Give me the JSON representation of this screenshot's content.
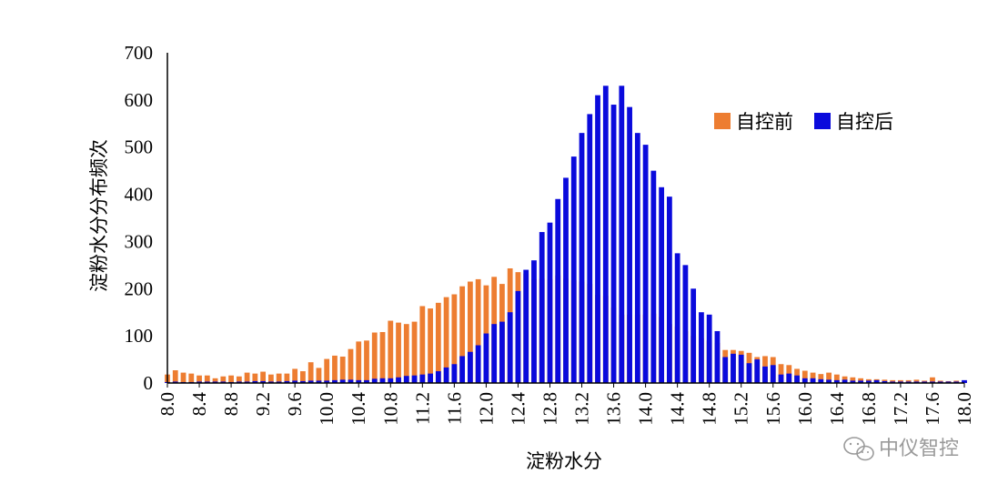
{
  "chart_data": {
    "type": "bar",
    "xlabel": "淀粉水分",
    "ylabel": "淀粉水分分布频次",
    "ylim": [
      0,
      700
    ],
    "yticks": [
      0,
      100,
      200,
      300,
      400,
      500,
      600,
      700
    ],
    "xlim": [
      8.0,
      18.0
    ],
    "bin_width": 0.1,
    "xticks": [
      "8.0",
      "8.4",
      "8.8",
      "9.2",
      "9.6",
      "10.0",
      "10.4",
      "10.8",
      "11.2",
      "11.6",
      "12.0",
      "12.4",
      "12.8",
      "13.2",
      "13.6",
      "14.0",
      "14.4",
      "14.8",
      "15.2",
      "15.6",
      "16.0",
      "16.4",
      "16.8",
      "17.2",
      "17.6",
      "18.0"
    ],
    "legend_position": "top-right",
    "grid": false,
    "series": [
      {
        "name": "自控前",
        "color": "#ED7D31",
        "x": [
          8.0,
          8.1,
          8.2,
          8.3,
          8.4,
          8.5,
          8.6,
          8.7,
          8.8,
          8.9,
          9.0,
          9.1,
          9.2,
          9.3,
          9.4,
          9.5,
          9.6,
          9.7,
          9.8,
          9.9,
          10.0,
          10.1,
          10.2,
          10.3,
          10.4,
          10.5,
          10.6,
          10.7,
          10.8,
          10.9,
          11.0,
          11.1,
          11.2,
          11.3,
          11.4,
          11.5,
          11.6,
          11.7,
          11.8,
          11.9,
          12.0,
          12.1,
          12.2,
          12.3,
          12.4,
          12.5,
          12.6,
          12.7,
          12.8,
          12.9,
          13.0,
          13.1,
          13.2,
          13.3,
          13.4,
          13.5,
          13.6,
          13.7,
          13.8,
          13.9,
          14.0,
          14.1,
          14.2,
          14.3,
          14.4,
          14.5,
          14.6,
          14.7,
          14.8,
          14.9,
          15.0,
          15.1,
          15.2,
          15.3,
          15.4,
          15.5,
          15.6,
          15.7,
          15.8,
          15.9,
          16.0,
          16.1,
          16.2,
          16.3,
          16.4,
          16.5,
          16.6,
          16.7,
          16.8,
          16.9,
          17.0,
          17.1,
          17.2,
          17.3,
          17.4,
          17.5,
          17.6,
          17.7,
          17.8,
          17.9,
          18.0
        ],
        "values": [
          18,
          27,
          22,
          20,
          16,
          16,
          10,
          14,
          16,
          14,
          22,
          20,
          24,
          18,
          20,
          20,
          30,
          25,
          44,
          32,
          51,
          58,
          56,
          72,
          88,
          90,
          107,
          108,
          132,
          128,
          125,
          130,
          163,
          158,
          170,
          182,
          188,
          205,
          215,
          220,
          207,
          225,
          210,
          243,
          235,
          232,
          220,
          221,
          220,
          228,
          221,
          218,
          215,
          210,
          187,
          185,
          160,
          145,
          145,
          145,
          145,
          147,
          140,
          125,
          120,
          110,
          100,
          95,
          90,
          85,
          70,
          70,
          68,
          64,
          55,
          57,
          55,
          40,
          38,
          30,
          26,
          22,
          19,
          22,
          18,
          14,
          12,
          10,
          8,
          8,
          7,
          6,
          6,
          6,
          7,
          5,
          12,
          5,
          4,
          5,
          5
        ]
      },
      {
        "name": "自控后",
        "color": "#0A0ADC",
        "x": [
          8.0,
          8.1,
          8.2,
          8.3,
          8.4,
          8.5,
          8.6,
          8.7,
          8.8,
          8.9,
          9.0,
          9.1,
          9.2,
          9.3,
          9.4,
          9.5,
          9.6,
          9.7,
          9.8,
          9.9,
          10.0,
          10.1,
          10.2,
          10.3,
          10.4,
          10.5,
          10.6,
          10.7,
          10.8,
          10.9,
          11.0,
          11.1,
          11.2,
          11.3,
          11.4,
          11.5,
          11.6,
          11.7,
          11.8,
          11.9,
          12.0,
          12.1,
          12.2,
          12.3,
          12.4,
          12.5,
          12.6,
          12.7,
          12.8,
          12.9,
          13.0,
          13.1,
          13.2,
          13.3,
          13.4,
          13.5,
          13.6,
          13.7,
          13.8,
          13.9,
          14.0,
          14.1,
          14.2,
          14.3,
          14.4,
          14.5,
          14.6,
          14.7,
          14.8,
          14.9,
          15.0,
          15.1,
          15.2,
          15.3,
          15.4,
          15.5,
          15.6,
          15.7,
          15.8,
          15.9,
          16.0,
          16.1,
          16.2,
          16.3,
          16.4,
          16.5,
          16.6,
          16.7,
          16.8,
          16.9,
          17.0,
          17.1,
          17.2,
          17.3,
          17.4,
          17.5,
          17.6,
          17.7,
          17.8,
          17.9,
          18.0
        ],
        "values": [
          2,
          3,
          2,
          2,
          3,
          3,
          3,
          3,
          2,
          3,
          3,
          4,
          4,
          3,
          3,
          4,
          5,
          4,
          5,
          5,
          5,
          6,
          7,
          7,
          6,
          6,
          9,
          10,
          10,
          12,
          15,
          16,
          18,
          20,
          25,
          33,
          40,
          57,
          66,
          80,
          105,
          125,
          130,
          150,
          195,
          240,
          260,
          320,
          340,
          390,
          435,
          480,
          530,
          570,
          610,
          630,
          590,
          630,
          585,
          530,
          505,
          450,
          415,
          395,
          275,
          250,
          200,
          150,
          145,
          110,
          55,
          62,
          60,
          42,
          50,
          35,
          38,
          18,
          20,
          16,
          10,
          10,
          8,
          7,
          6,
          7,
          5,
          5,
          5,
          6,
          4,
          3,
          3,
          3,
          3,
          3,
          3,
          3,
          3,
          3,
          6
        ]
      }
    ]
  },
  "watermark": {
    "text": "中仪智控",
    "icon": "wechat-icon"
  }
}
